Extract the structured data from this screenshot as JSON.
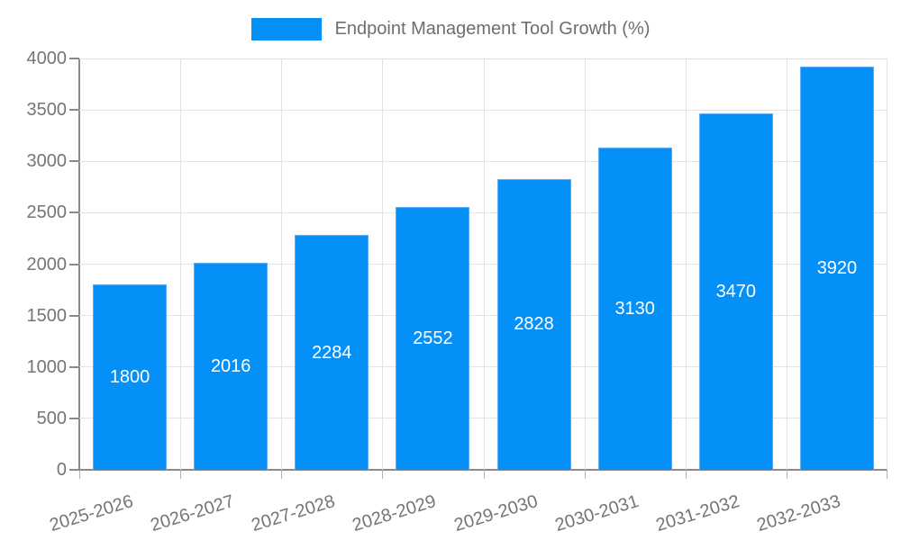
{
  "chart_data": {
    "type": "bar",
    "title": "Endpoint Management Tool Growth (%)",
    "legend": {
      "position": "top-center",
      "entries": [
        "Endpoint Management Tool Growth (%)"
      ]
    },
    "categories": [
      "2025-2026",
      "2026-2027",
      "2027-2028",
      "2028-2029",
      "2029-2030",
      "2030-2031",
      "2031-2032",
      "2032-2033"
    ],
    "values": [
      1800,
      2016,
      2284,
      2552,
      2828,
      3130,
      3470,
      3920
    ],
    "xlabel": "",
    "ylabel": "",
    "ylim": [
      0,
      4000
    ],
    "yticks": [
      0,
      500,
      1000,
      1500,
      2000,
      2500,
      3000,
      3500,
      4000
    ],
    "grid": "horizontal value lines plus vertical category-boundary lines",
    "value_labels": "white, centered inside each bar",
    "x_label_rotation_deg": -17,
    "colors": {
      "bar": "#0590f8",
      "bar_border": "#5caef8",
      "value_label": "#ffffff",
      "axis_text": "#757575",
      "legend_text": "#6e6e6e",
      "gridline": "#e3e3e3",
      "axis_line": "#8a8a8a"
    }
  }
}
